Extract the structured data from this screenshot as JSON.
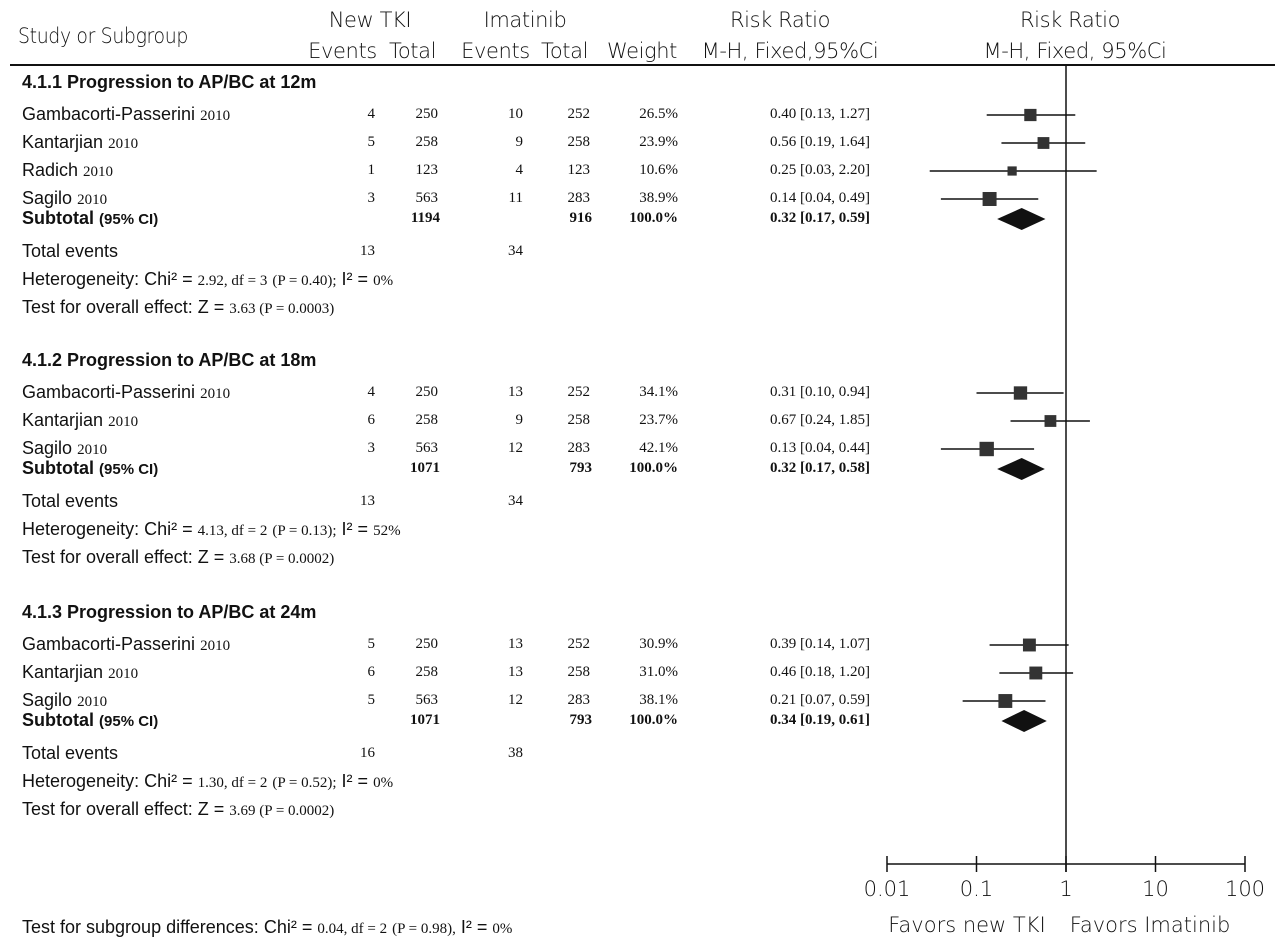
{
  "header": {
    "study": "Study or Subgroup",
    "new_tki": "New TKI",
    "imatinib": "Imatinib",
    "events1": "Events",
    "total1": "Total",
    "events2": "Events",
    "total2": "Total",
    "weight": "Weight",
    "rr_title": "Risk Ratio",
    "rr_method": "M-H, Fixed,95%Ci",
    "rr_plot_title": "Risk Ratio",
    "rr_plot_method": "M-H, Fixed, 95%Ci"
  },
  "groups": [
    {
      "title": "4.1.1 Progression to AP/BC at 12m",
      "studies": [
        {
          "name": "Gambacorti-Passerini",
          "year": "2010",
          "e1": "4",
          "t1": "250",
          "e2": "10",
          "t2": "252",
          "weight": "26.5%",
          "ci": "0.40 [0.13, 1.27]"
        },
        {
          "name": "Kantarjian",
          "year": "2010",
          "e1": "5",
          "t1": "258",
          "e2": "9",
          "t2": "258",
          "weight": "23.9%",
          "ci": "0.56 [0.19, 1.64]"
        },
        {
          "name": "Radich",
          "year": "2010",
          "e1": "1",
          "t1": "123",
          "e2": "4",
          "t2": "123",
          "weight": "10.6%",
          "ci": "0.25 [0.03, 2.20]"
        },
        {
          "name": "Sagilo",
          "year": "2010",
          "e1": "3",
          "t1": "563",
          "e2": "11",
          "t2": "283",
          "weight": "38.9%",
          "ci": "0.14 [0.04, 0.49]"
        }
      ],
      "subtotal": {
        "label": "Subtotal",
        "ci_label": "(95% CI)",
        "t1": "1194",
        "t2": "916",
        "weight": "100.0%",
        "ci": "0.32 [0.17, 0.59]"
      },
      "events": {
        "label": "Total events",
        "e1": "13",
        "e2": "34"
      },
      "heterogeneity": {
        "label": "Heterogeneity:",
        "chi": "Chi² =",
        "chi_val": "2.92, df = 3",
        "p_paren": "(P = 0.40);",
        "i2": "I² =",
        "i2_val": "0%"
      },
      "overall": {
        "label": "Test for overall effect:",
        "z": "Z =",
        "z_val": "3.63 (P = 0.0003)"
      }
    },
    {
      "title": "4.1.2 Progression to AP/BC at 18m",
      "studies": [
        {
          "name": "Gambacorti-Passerini",
          "year": "2010",
          "e1": "4",
          "t1": "250",
          "e2": "13",
          "t2": "252",
          "weight": "34.1%",
          "ci": "0.31 [0.10, 0.94]"
        },
        {
          "name": "Kantarjian",
          "year": "2010",
          "e1": "6",
          "t1": "258",
          "e2": "9",
          "t2": "258",
          "weight": "23.7%",
          "ci": "0.67 [0.24, 1.85]"
        },
        {
          "name": "Sagilo",
          "year": "2010",
          "e1": "3",
          "t1": "563",
          "e2": "12",
          "t2": "283",
          "weight": "42.1%",
          "ci": "0.13 [0.04, 0.44]"
        }
      ],
      "subtotal": {
        "label": "Subtotal",
        "ci_label": "(95% CI)",
        "t1": "1071",
        "t2": "793",
        "weight": "100.0%",
        "ci": "0.32 [0.17, 0.58]"
      },
      "events": {
        "label": "Total events",
        "e1": "13",
        "e2": "34"
      },
      "heterogeneity": {
        "label": "Heterogeneity:",
        "chi": "Chi² =",
        "chi_val": "4.13, df = 2",
        "p_paren": "(P = 0.13);",
        "i2": "I² =",
        "i2_val": "52%"
      },
      "overall": {
        "label": "Test for overall effect:",
        "z": "Z =",
        "z_val": "3.68 (P = 0.0002)"
      }
    },
    {
      "title": "4.1.3 Progression to AP/BC at 24m",
      "studies": [
        {
          "name": "Gambacorti-Passerini",
          "year": "2010",
          "e1": "5",
          "t1": "250",
          "e2": "13",
          "t2": "252",
          "weight": "30.9%",
          "ci": "0.39 [0.14, 1.07]"
        },
        {
          "name": "Kantarjian",
          "year": "2010",
          "e1": "6",
          "t1": "258",
          "e2": "13",
          "t2": "258",
          "weight": "31.0%",
          "ci": "0.46 [0.18, 1.20]"
        },
        {
          "name": "Sagilo",
          "year": "2010",
          "e1": "5",
          "t1": "563",
          "e2": "12",
          "t2": "283",
          "weight": "38.1%",
          "ci": "0.21 [0.07, 0.59]"
        }
      ],
      "subtotal": {
        "label": "Subtotal",
        "ci_label": "(95% CI)",
        "t1": "1071",
        "t2": "793",
        "weight": "100.0%",
        "ci": "0.34 [0.19, 0.61]"
      },
      "events": {
        "label": "Total events",
        "e1": "16",
        "e2": "38"
      },
      "heterogeneity": {
        "label": "Heterogeneity:",
        "chi": "Chi² =",
        "chi_val": "1.30, df = 2",
        "p_paren": "(P = 0.52);",
        "i2": "I² =",
        "i2_val": "0%"
      },
      "overall": {
        "label": "Test for overall effect:",
        "z": "Z =",
        "z_val": "3.69 (P = 0.0002)"
      }
    }
  ],
  "footer": {
    "subgroup_test": "Test for subgroup differences:",
    "chi": "Chi² =",
    "chi_val": "0.04, df = 2",
    "p_paren": "(P = 0.98),",
    "i2": "I² =",
    "i2_val": "0%"
  },
  "chart_data": {
    "type": "forest",
    "title": "Risk Ratio",
    "subtitle": "M-H, Fixed, 95%Ci",
    "scale": "log",
    "xlim": [
      0.01,
      100
    ],
    "ticks": [
      0.01,
      0.1,
      1,
      10,
      100
    ],
    "tick_labels": [
      "0.01",
      "0.1",
      "1",
      "10",
      "100"
    ],
    "reference_line": 1,
    "favors_left": "Favors new TKI",
    "favors_right": "Favors Imatinib",
    "studies": [
      {
        "group": 0,
        "name": "Gambacorti-Passerini 2010",
        "rr": 0.4,
        "lo": 0.13,
        "hi": 1.27,
        "weight": 26.5
      },
      {
        "group": 0,
        "name": "Kantarjian 2010",
        "rr": 0.56,
        "lo": 0.19,
        "hi": 1.64,
        "weight": 23.9
      },
      {
        "group": 0,
        "name": "Radich 2010",
        "rr": 0.25,
        "lo": 0.03,
        "hi": 2.2,
        "weight": 10.6
      },
      {
        "group": 0,
        "name": "Sagilo 2010",
        "rr": 0.14,
        "lo": 0.04,
        "hi": 0.49,
        "weight": 38.9
      },
      {
        "group": 1,
        "name": "Gambacorti-Passerini 2010",
        "rr": 0.31,
        "lo": 0.1,
        "hi": 0.94,
        "weight": 34.1
      },
      {
        "group": 1,
        "name": "Kantarjian 2010",
        "rr": 0.67,
        "lo": 0.24,
        "hi": 1.85,
        "weight": 23.7
      },
      {
        "group": 1,
        "name": "Sagilo 2010",
        "rr": 0.13,
        "lo": 0.04,
        "hi": 0.44,
        "weight": 42.1
      },
      {
        "group": 2,
        "name": "Gambacorti-Passerini 2010",
        "rr": 0.39,
        "lo": 0.14,
        "hi": 1.07,
        "weight": 30.9
      },
      {
        "group": 2,
        "name": "Kantarjian 2010",
        "rr": 0.46,
        "lo": 0.18,
        "hi": 1.2,
        "weight": 31.0
      },
      {
        "group": 2,
        "name": "Sagilo 2010",
        "rr": 0.21,
        "lo": 0.07,
        "hi": 0.59,
        "weight": 38.1
      }
    ],
    "subtotals": [
      {
        "group": 0,
        "rr": 0.32,
        "lo": 0.17,
        "hi": 0.59
      },
      {
        "group": 1,
        "rr": 0.32,
        "lo": 0.17,
        "hi": 0.58
      },
      {
        "group": 2,
        "rr": 0.34,
        "lo": 0.19,
        "hi": 0.61
      }
    ]
  }
}
